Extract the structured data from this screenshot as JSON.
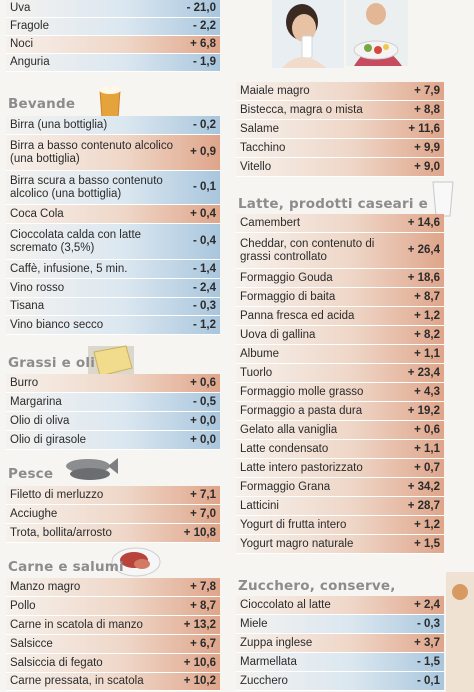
{
  "fruit": [
    {
      "label": "Uva",
      "value": "- 21,0",
      "sign": "neg"
    },
    {
      "label": "Fragole",
      "value": "- 2,2",
      "sign": "neg"
    },
    {
      "label": "Noci",
      "value": "+ 6,8",
      "sign": "pos"
    },
    {
      "label": "Anguria",
      "value": "- 1,9",
      "sign": "neg"
    }
  ],
  "bevande": {
    "title": "Bevande",
    "items": [
      {
        "label": "Birra (una bottiglia)",
        "value": "- 0,2",
        "sign": "neg"
      },
      {
        "label": "Birra a basso contenuto alcolico (una bottiglia)",
        "value": "+ 0,9",
        "sign": "pos"
      },
      {
        "label": "Birra scura a basso contenuto alcolico (una bottiglia)",
        "value": "- 0,1",
        "sign": "neg"
      },
      {
        "label": "Coca Cola",
        "value": "+ 0,4",
        "sign": "pos"
      },
      {
        "label": "Cioccolata calda con latte scremato (3,5%)",
        "value": "- 0,4",
        "sign": "neg"
      },
      {
        "label": "Caffè, infusione, 5 min.",
        "value": "- 1,4",
        "sign": "neg"
      },
      {
        "label": "Vino rosso",
        "value": "- 2,4",
        "sign": "neg"
      },
      {
        "label": "Tisana",
        "value": "- 0,3",
        "sign": "neg"
      },
      {
        "label": "Vino bianco secco",
        "value": "- 1,2",
        "sign": "neg"
      }
    ]
  },
  "grassi": {
    "title": "Grassi e oli",
    "items": [
      {
        "label": "Burro",
        "value": "+ 0,6",
        "sign": "pos"
      },
      {
        "label": "Margarina",
        "value": "- 0,5",
        "sign": "neg"
      },
      {
        "label": "Olio di oliva",
        "value": "+ 0,0",
        "sign": "neg"
      },
      {
        "label": "Olio di girasole",
        "value": "+ 0,0",
        "sign": "neg"
      }
    ]
  },
  "pesce": {
    "title": "Pesce",
    "items": [
      {
        "label": "Filetto di merluzzo",
        "value": "+ 7,1",
        "sign": "pos"
      },
      {
        "label": "Acciughe",
        "value": "+ 7,0",
        "sign": "pos"
      },
      {
        "label": "Trota, bollita/arrosto",
        "value": "+ 10,8",
        "sign": "pos"
      }
    ]
  },
  "carne": {
    "title": "Carne e salumi",
    "items": [
      {
        "label": "Manzo magro",
        "value": "+ 7,8",
        "sign": "pos"
      },
      {
        "label": "Pollo",
        "value": "+ 8,7",
        "sign": "pos"
      },
      {
        "label": "Carne in scatola di manzo",
        "value": "+ 13,2",
        "sign": "pos"
      },
      {
        "label": "Salsicce",
        "value": "+ 6,7",
        "sign": "pos"
      },
      {
        "label": "Salsiccia di fegato",
        "value": "+ 10,6",
        "sign": "pos"
      },
      {
        "label": "Carne pressata, in scatola",
        "value": "+ 10,2",
        "sign": "pos"
      }
    ]
  },
  "carne_cont": [
    {
      "label": "Maiale magro",
      "value": "+ 7,9",
      "sign": "pos"
    },
    {
      "label": "Bistecca, magra o mista",
      "value": "+ 8,8",
      "sign": "pos"
    },
    {
      "label": "Salame",
      "value": "+ 11,6",
      "sign": "pos"
    },
    {
      "label": "Tacchino",
      "value": "+ 9,9",
      "sign": "pos"
    },
    {
      "label": "Vitello",
      "value": "+ 9,0",
      "sign": "pos"
    }
  ],
  "latte": {
    "title": "Latte, prodotti caseari e uova",
    "items": [
      {
        "label": "Camembert",
        "value": "+ 14,6",
        "sign": "pos"
      },
      {
        "label": "Cheddar, con contenuto di grassi controllato",
        "value": "+ 26,4",
        "sign": "pos"
      },
      {
        "label": "Formaggio Gouda",
        "value": "+ 18,6",
        "sign": "pos"
      },
      {
        "label": "Formaggio di baita",
        "value": "+ 8,7",
        "sign": "pos"
      },
      {
        "label": "Panna fresca ed acida",
        "value": "+ 1,2",
        "sign": "pos"
      },
      {
        "label": "Uova di gallina",
        "value": "+ 8,2",
        "sign": "pos"
      },
      {
        "label": "Albume",
        "value": "+ 1,1",
        "sign": "pos"
      },
      {
        "label": "Tuorlo",
        "value": "+ 23,4",
        "sign": "pos"
      },
      {
        "label": "Formaggio molle grasso",
        "value": "+ 4,3",
        "sign": "pos"
      },
      {
        "label": "Formaggio a pasta dura",
        "value": "+ 19,2",
        "sign": "pos"
      },
      {
        "label": "Gelato alla vaniglia",
        "value": "+ 0,6",
        "sign": "pos"
      },
      {
        "label": "Latte condensato",
        "value": "+ 1,1",
        "sign": "pos"
      },
      {
        "label": "Latte intero pastorizzato",
        "value": "+ 0,7",
        "sign": "pos"
      },
      {
        "label": "Formaggio Grana",
        "value": "+ 34,2",
        "sign": "pos"
      },
      {
        "label": "Latticini",
        "value": "+ 28,7",
        "sign": "pos"
      },
      {
        "label": "Yogurt di frutta intero",
        "value": "+ 1,2",
        "sign": "pos"
      },
      {
        "label": "Yogurt magro naturale",
        "value": "+ 1,5",
        "sign": "pos"
      }
    ]
  },
  "zucchero": {
    "title": "Zucchero, conserve, dolciumi",
    "items": [
      {
        "label": "Cioccolato al latte",
        "value": "+ 2,4",
        "sign": "pos"
      },
      {
        "label": "Miele",
        "value": "- 0,3",
        "sign": "neg"
      },
      {
        "label": "Zuppa inglese",
        "value": "+ 3,7",
        "sign": "pos"
      },
      {
        "label": "Marmellata",
        "value": "- 1,5",
        "sign": "neg"
      },
      {
        "label": "Zucchero",
        "value": "- 0,1",
        "sign": "neg"
      }
    ]
  },
  "icons": [
    "beer-glass-icon",
    "butter-icon",
    "fish-icon",
    "meat-plate-icon",
    "milk-glass-icon",
    "photo-woman-drinking",
    "photo-salad"
  ]
}
